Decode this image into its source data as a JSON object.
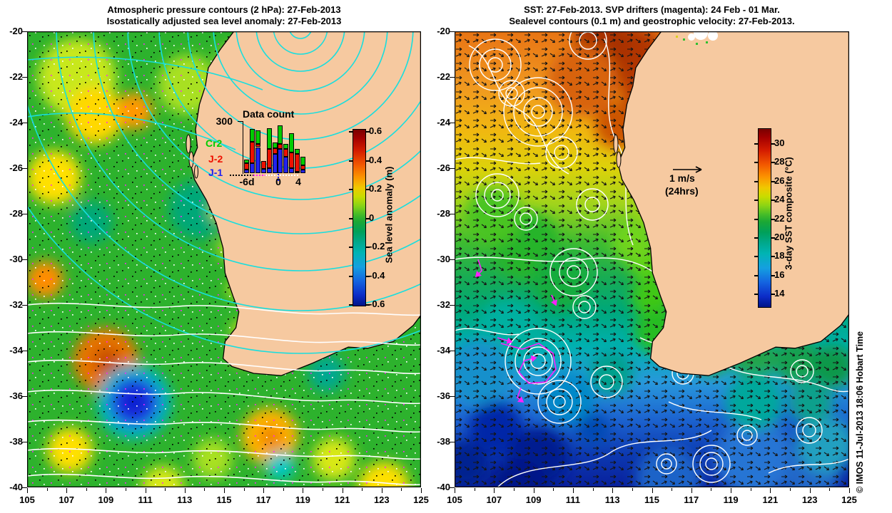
{
  "left": {
    "title1": "Atmospheric pressure contours (2 hPa): 27-Feb-2013",
    "title2": "Isostatically adjusted sea level anomaly: 27-Feb-2013",
    "colorbar_label": "Sea level anomaly (m)",
    "colorbar_ticks": [
      "0.6",
      "0.4",
      "0.2",
      "0",
      "-0.2",
      "-0.4",
      "-0.6"
    ],
    "inset": {
      "title": "Data count",
      "ymax_label": "300",
      "xtick_labels": [
        "-6d",
        "0",
        "4"
      ],
      "legend": [
        {
          "label": "Cr2",
          "color": "#00cc00"
        },
        {
          "label": "J-2",
          "color": "#ee1100"
        },
        {
          "label": "J-1",
          "color": "#2222ee"
        }
      ]
    }
  },
  "right": {
    "title1": "SST: 27-Feb-2013. SVP drifters (magenta): 24 Feb - 01 Mar.",
    "title2": "Sealevel contours (0.1 m) and geostrophic velocity: 27-Feb-2013.",
    "colorbar_label": "3-day SST composite (°C)",
    "colorbar_ticks": [
      "30",
      "28",
      "26",
      "24",
      "22",
      "20",
      "18",
      "16",
      "14"
    ],
    "scale_line1": "1 m/s",
    "scale_line2": "(24hrs)"
  },
  "axes": {
    "lon": [
      "105",
      "107",
      "109",
      "111",
      "113",
      "115",
      "117",
      "119",
      "121",
      "123",
      "125"
    ],
    "lat": [
      "-20",
      "-22",
      "-24",
      "-26",
      "-28",
      "-30",
      "-32",
      "-34",
      "-36",
      "-38",
      "-40"
    ]
  },
  "watermark": "© IMOS 11-Jul-2013 18:06 Hobart Time",
  "colors": {
    "land": "#f6c9a0",
    "coastline": "#000000",
    "pressure_contour_cyan": "#18dede",
    "pressure_contour_white": "#ffffff",
    "sealevel_contour": "#ffffff",
    "drifter_magenta": "#ff20ff",
    "velocity_arrow": "#141414"
  },
  "chart_data": [
    {
      "type": "heatmap",
      "panel": "left",
      "title": "Atmospheric pressure contours (2 hPa): 27-Feb-2013 / Isostatically adjusted sea level anomaly: 27-Feb-2013",
      "x_axis": {
        "range": [
          105,
          125
        ],
        "ticks": [
          105,
          107,
          109,
          111,
          113,
          115,
          117,
          119,
          121,
          123,
          125
        ]
      },
      "y_axis": {
        "range": [
          -40,
          -20
        ],
        "ticks": [
          -20,
          -22,
          -24,
          -26,
          -28,
          -30,
          -32,
          -34,
          -36,
          -38,
          -40
        ]
      },
      "colorbar": {
        "label": "Sea level anomaly (m)",
        "min": -0.6,
        "max": 0.6,
        "ticks": [
          0.6,
          0.4,
          0.2,
          0,
          -0.2,
          -0.4,
          -0.6
        ],
        "colormap": "jet"
      },
      "overlays": [
        "cyan atmospheric pressure contours (2 hPa) with closed high centred near 119E,-20.5S",
        "white pressure contours across southern half",
        "scattered black/white/magenta observation dots"
      ],
      "notable_features": [
        {
          "desc": "positive SLA (orange) eddy",
          "lon": 109.0,
          "lat": -34.5,
          "value_m": 0.25
        },
        {
          "desc": "negative SLA (blue) eddy",
          "lon": 110.4,
          "lat": -36.3,
          "value_m": -0.35
        },
        {
          "desc": "background SLA near zero (green)",
          "value_m": 0.0
        }
      ]
    },
    {
      "type": "heatmap",
      "panel": "right",
      "title": "SST: 27-Feb-2013. SVP drifters (magenta): 24 Feb - 01 Mar. / Sealevel contours (0.1 m) and geostrophic velocity: 27-Feb-2013.",
      "x_axis": {
        "range": [
          105,
          125
        ],
        "ticks": [
          105,
          107,
          109,
          111,
          113,
          115,
          117,
          119,
          121,
          123,
          125
        ]
      },
      "y_axis": {
        "range": [
          -40,
          -20
        ],
        "ticks": [
          -20,
          -22,
          -24,
          -26,
          -28,
          -30,
          -32,
          -34,
          -36,
          -38,
          -40
        ]
      },
      "colorbar": {
        "label": "3-day SST composite (°C)",
        "min": 13,
        "max": 31,
        "ticks": [
          30,
          28,
          26,
          24,
          22,
          20,
          18,
          16,
          14
        ],
        "colormap": "jet"
      },
      "overlays": [
        "white sea level contours (0.1 m interval) with many closed eddies",
        "black geostrophic velocity arrows (scale arrow 1 m/s over 24hrs)",
        "magenta SVP drifter tracks near 109E,-34S"
      ],
      "notable_features": [
        {
          "desc": "warmest SST >30 °C along NW coast",
          "sst_c": 30
        },
        {
          "desc": "orange band in north",
          "sst_c": 28
        },
        {
          "desc": "green mid-latitude band",
          "sst_c": 22
        },
        {
          "desc": "coldest water SW corner",
          "sst_c": 14
        }
      ]
    },
    {
      "type": "bar",
      "stacked": true,
      "title": "Data count",
      "ylim": [
        0,
        300
      ],
      "ytick_labels": [
        "300"
      ],
      "x_days": [
        -6,
        -5,
        -4,
        -3,
        -2,
        -1,
        0,
        1,
        2,
        3,
        4
      ],
      "xtick_labels": [
        "-6d",
        "0",
        "4"
      ],
      "series": [
        {
          "name": "J-1",
          "color": "#2222ee",
          "values": [
            22,
            56,
            150,
            25,
            30,
            110,
            140,
            95,
            30,
            10,
            20
          ]
        },
        {
          "name": "J-2",
          "color": "#ee1100",
          "values": [
            34,
            126,
            20,
            45,
            110,
            35,
            30,
            45,
            90,
            100,
            25
          ]
        },
        {
          "name": "Cr2",
          "color": "#00cc00",
          "values": [
            23,
            71,
            75,
            0,
            120,
            30,
            105,
            30,
            110,
            30,
            50
          ]
        }
      ]
    }
  ]
}
